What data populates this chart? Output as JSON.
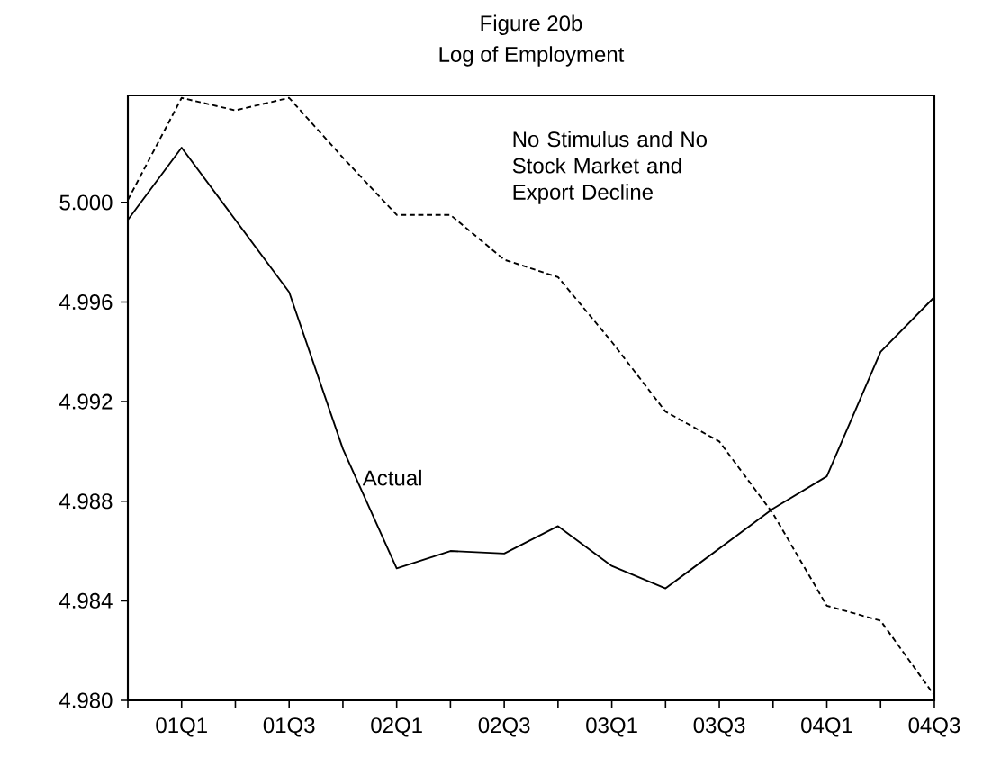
{
  "chart_data": {
    "type": "line",
    "title": "Figure 20b",
    "subtitle": "Log of Employment",
    "categories": [
      null,
      "01Q1",
      null,
      "01Q3",
      null,
      "02Q1",
      null,
      "02Q3",
      null,
      "03Q1",
      null,
      "03Q3",
      null,
      "04Q1",
      null,
      "04Q3"
    ],
    "ylim": [
      4.98,
      5.0043
    ],
    "yticks": [
      {
        "value": 4.98,
        "label": "4.980"
      },
      {
        "value": 4.984,
        "label": "4.984"
      },
      {
        "value": 4.988,
        "label": "4.988"
      },
      {
        "value": 4.992,
        "label": "4.992"
      },
      {
        "value": 4.996,
        "label": "4.996"
      },
      {
        "value": 5.0,
        "label": "5.000"
      }
    ],
    "grid": false,
    "marker": "none",
    "series": [
      {
        "name": "Actual",
        "color": "#000000",
        "line_style": "solid",
        "values": [
          4.9993,
          5.0022,
          4.9993,
          4.9964,
          4.9901,
          4.9853,
          4.986,
          4.9859,
          4.987,
          4.9854,
          4.9845,
          4.9861,
          4.9877,
          4.989,
          4.994,
          4.9962
        ]
      },
      {
        "name": "No Stimulus and No Stock Market and Export Decline",
        "color": "#000000",
        "line_style": "dashed",
        "values": [
          5.0001,
          5.0042,
          5.0037,
          5.0042,
          5.0018,
          4.9995,
          4.9995,
          4.9977,
          4.997,
          4.9944,
          4.9916,
          4.9904,
          4.9875,
          4.9838,
          4.9832,
          4.9802
        ]
      }
    ]
  }
}
